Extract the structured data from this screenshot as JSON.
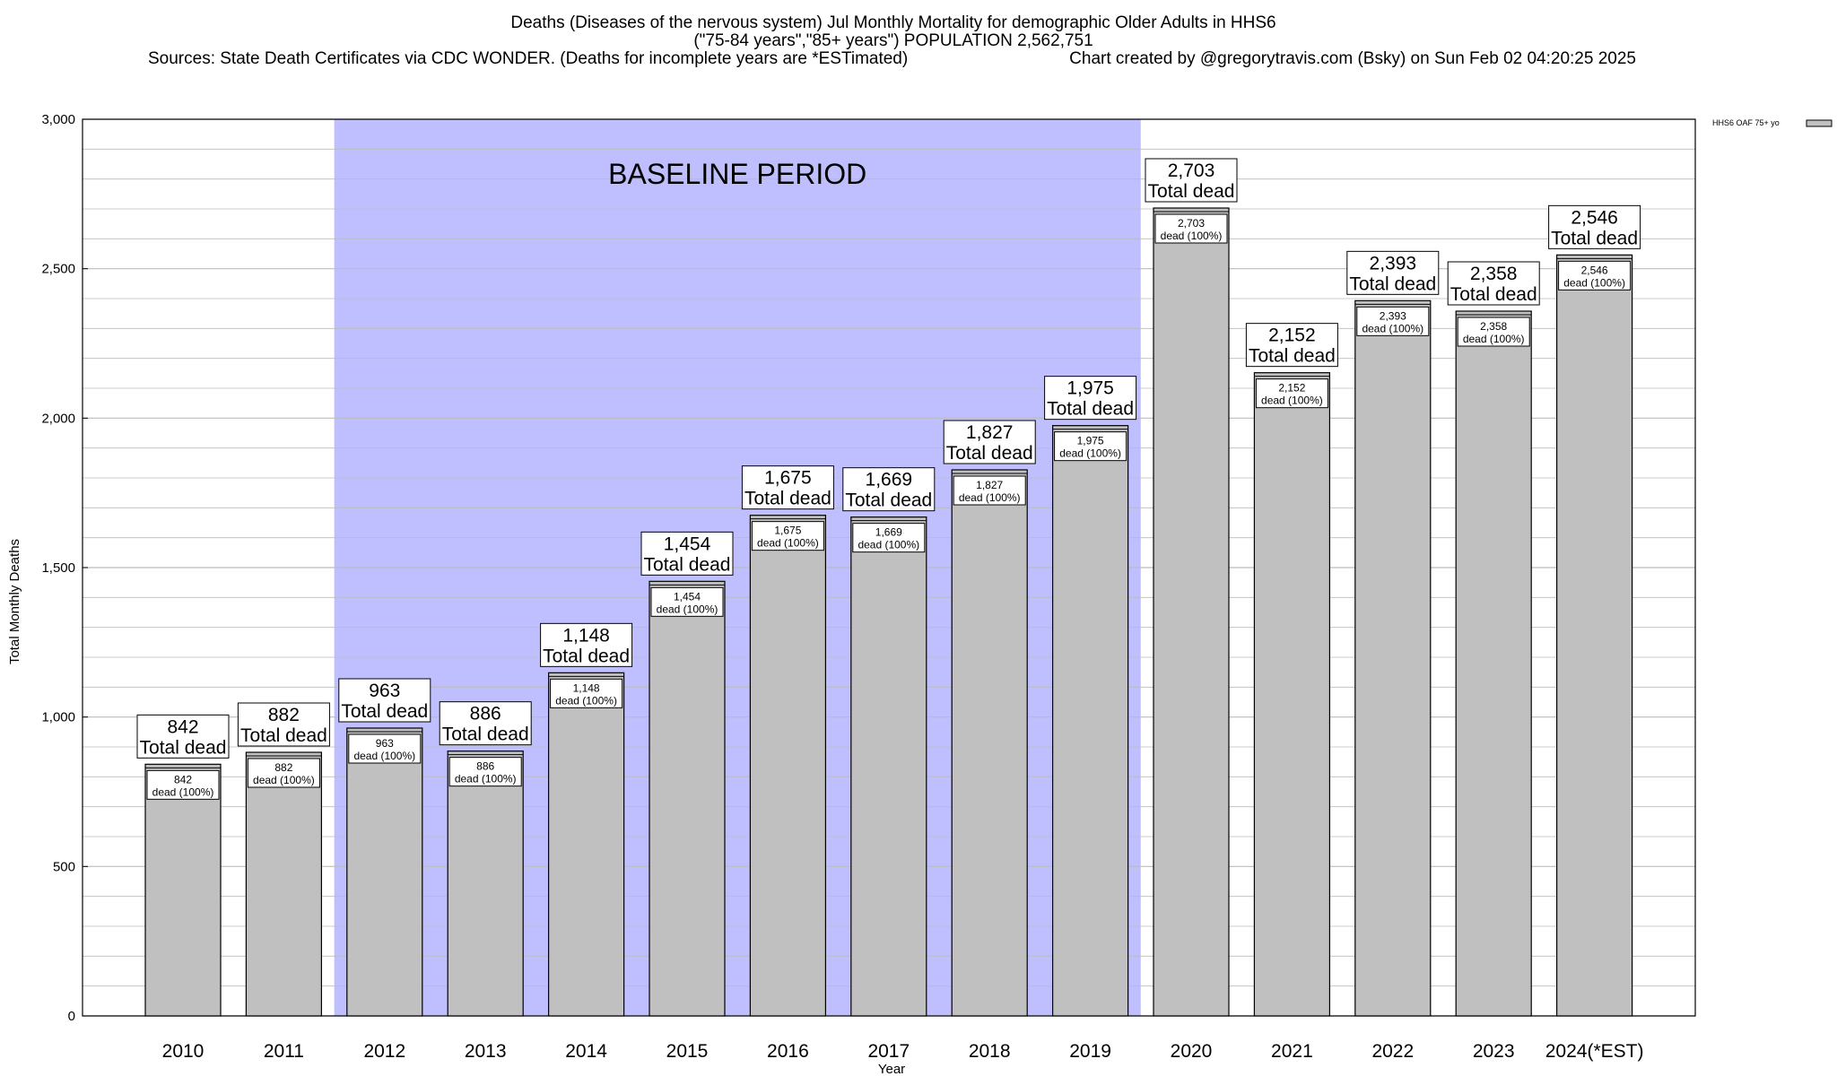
{
  "header": {
    "title": "Deaths (Diseases of the nervous system) Jul Monthly Mortality for demographic Older Adults in HHS6",
    "subtitle": "(\"75-84 years\",\"85+ years\") POPULATION 2,562,751",
    "sources": "Sources: State Death Certificates via CDC WONDER. (Deaths for incomplete years are *ESTimated)",
    "credit": "Chart created by @gregorytravis.com (Bsky) on Sun Feb 02 04:20:25 2025"
  },
  "chart_data": {
    "type": "bar",
    "categories": [
      "2010",
      "2011",
      "2012",
      "2013",
      "2014",
      "2015",
      "2016",
      "2017",
      "2018",
      "2019",
      "2020",
      "2021",
      "2022",
      "2023",
      "2024(*EST)"
    ],
    "series": [
      {
        "name": "HHS6 OAF 75+ yo",
        "values": [
          842,
          882,
          963,
          886,
          1148,
          1454,
          1675,
          1669,
          1827,
          1975,
          2703,
          2152,
          2393,
          2358,
          2546
        ],
        "value_labels": [
          "842",
          "882",
          "963",
          "886",
          "1,148",
          "1,454",
          "1,675",
          "1,669",
          "1,827",
          "1,975",
          "2,703",
          "2,152",
          "2,393",
          "2,358",
          "2,546"
        ]
      }
    ],
    "total_label_suffix": "Total dead",
    "inner_label_suffix": "dead (100%)",
    "xlabel": "Year",
    "ylabel": "Total Monthly Deaths",
    "ylim": [
      0,
      3000
    ],
    "y_ticks": [
      0,
      500,
      1000,
      1500,
      2000,
      2500,
      3000
    ],
    "y_tick_labels": [
      "0",
      "500",
      "1,000",
      "1,500",
      "2,000",
      "2,500",
      "3,000"
    ],
    "minor_grid_step": 100,
    "grid": true,
    "legend_position": "top-right",
    "shaded_region": {
      "label": "BASELINE PERIOD",
      "from_category": "2012",
      "to_category": "2019",
      "color": "#bfbfff"
    },
    "colors": {
      "bar_fill": "#c0c0c0",
      "bar_stroke": "#000000",
      "grid": "#bbbbbb"
    }
  }
}
